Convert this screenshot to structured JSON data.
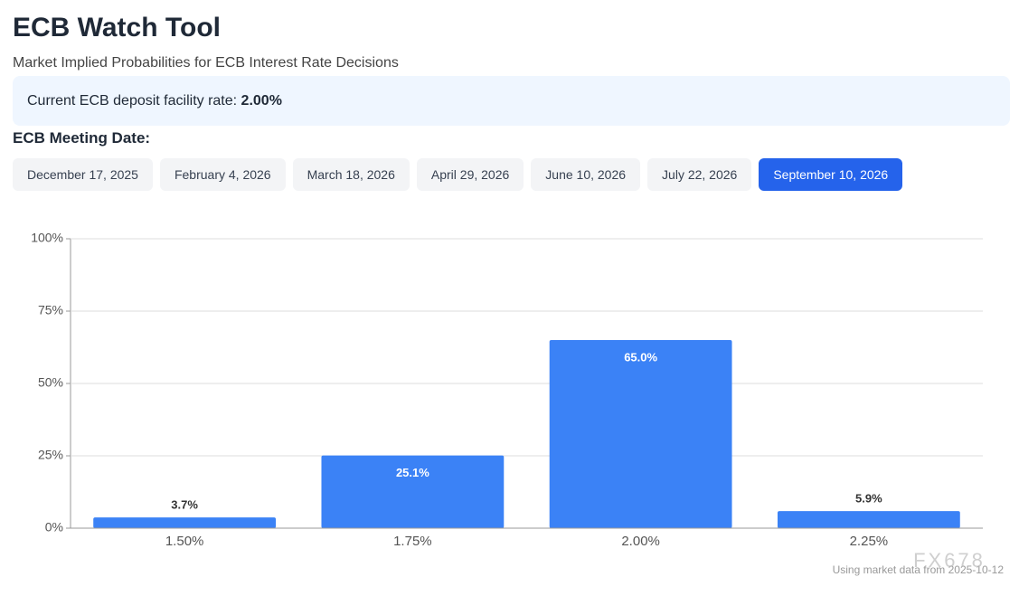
{
  "header": {
    "title": "ECB Watch Tool",
    "subtitle": "Market Implied Probabilities for ECB Interest Rate Decisions"
  },
  "rate_box": {
    "label": "Current ECB deposit facility rate:",
    "value": "2.00%"
  },
  "meeting_selector": {
    "label": "ECB Meeting Date:",
    "buttons": [
      {
        "label": "December 17, 2025",
        "active": false
      },
      {
        "label": "February 4, 2026",
        "active": false
      },
      {
        "label": "March 18, 2026",
        "active": false
      },
      {
        "label": "April 29, 2026",
        "active": false
      },
      {
        "label": "June 10, 2026",
        "active": false
      },
      {
        "label": "July 22, 2026",
        "active": false
      },
      {
        "label": "September 10, 2026",
        "active": true
      }
    ]
  },
  "chart_data": {
    "type": "bar",
    "categories": [
      "1.50%",
      "1.75%",
      "2.00%",
      "2.25%"
    ],
    "values": [
      3.7,
      25.1,
      65.0,
      5.9
    ],
    "value_labels": [
      "3.7%",
      "25.1%",
      "65.0%",
      "5.9%"
    ],
    "color": "#3b82f6",
    "ylim": [
      0,
      100
    ],
    "yticks": [
      {
        "value": 0,
        "label": "0%"
      },
      {
        "value": 25,
        "label": "25%"
      },
      {
        "value": 50,
        "label": "50%"
      },
      {
        "value": 75,
        "label": "75%"
      },
      {
        "value": 100,
        "label": "100%"
      }
    ],
    "grid": true
  },
  "footer": {
    "note": "Using market data from 2025-10-12",
    "watermark": "FX678"
  }
}
